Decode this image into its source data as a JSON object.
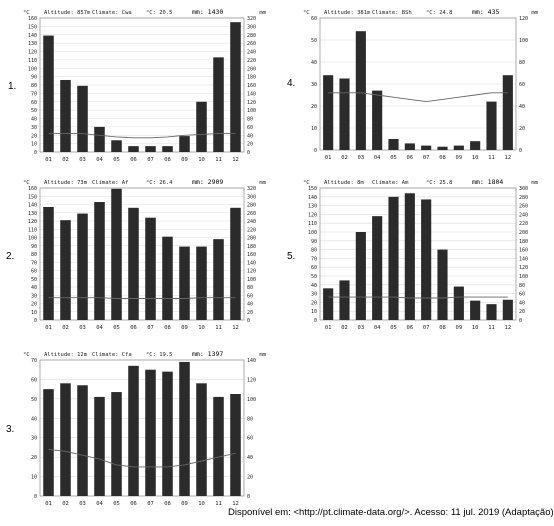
{
  "source_note": "Disponível em: <http://pt.climate-data.org/>. Acesso: 11 jul. 2019 (Adaptação).",
  "chart_data": [
    {
      "type": "bar",
      "number_label": "1.",
      "header": {
        "altitude": "Altitude: 857m",
        "climate": "Climate: Cwa",
        "temp": "°C: 20.5",
        "precip": "mm: 1430"
      },
      "left_unit": "°C",
      "right_unit": "mm",
      "left_ticks": [
        "160",
        "150",
        "140",
        "130",
        "120",
        "110",
        "100",
        "90",
        "80",
        "70",
        "60",
        "50",
        "40",
        "30",
        "20",
        "10",
        "0"
      ],
      "right_ticks": [
        "320",
        "300",
        "280",
        "260",
        "240",
        "220",
        "200",
        "180",
        "160",
        "140",
        "120",
        "100",
        "80",
        "60",
        "40",
        "20",
        "0"
      ],
      "right_max": 320,
      "categories": [
        "01",
        "02",
        "03",
        "04",
        "05",
        "06",
        "07",
        "08",
        "09",
        "10",
        "11",
        "12"
      ],
      "series": [
        {
          "name": "mm",
          "values": [
            278,
            172,
            158,
            60,
            28,
            14,
            14,
            14,
            38,
            120,
            226,
            310
          ]
        },
        {
          "name": "°C",
          "values": [
            22,
            22,
            22,
            20,
            18,
            17,
            17,
            18,
            20,
            21,
            22,
            22
          ]
        }
      ]
    },
    {
      "type": "bar",
      "number_label": "2.",
      "header": {
        "altitude": "Altitude: 73m",
        "climate": "Climate: Af",
        "temp": "°C: 26.4",
        "precip": "mm: 2909"
      },
      "left_unit": "°C",
      "right_unit": "mm",
      "left_ticks": [
        "160",
        "150",
        "140",
        "130",
        "120",
        "110",
        "100",
        "90",
        "80",
        "70",
        "60",
        "50",
        "40",
        "30",
        "20",
        "10",
        "0"
      ],
      "right_ticks": [
        "320",
        "300",
        "280",
        "260",
        "240",
        "220",
        "200",
        "180",
        "160",
        "140",
        "120",
        "100",
        "80",
        "60",
        "40",
        "20",
        "0"
      ],
      "right_max": 320,
      "categories": [
        "01",
        "02",
        "03",
        "04",
        "05",
        "06",
        "07",
        "08",
        "09",
        "10",
        "11",
        "12"
      ],
      "series": [
        {
          "name": "mm",
          "values": [
            274,
            242,
            258,
            286,
            318,
            272,
            248,
            202,
            178,
            178,
            196,
            272
          ]
        },
        {
          "name": "°C",
          "values": [
            27,
            27,
            27,
            27,
            26,
            26,
            26,
            26,
            26,
            27,
            27,
            27
          ]
        }
      ]
    },
    {
      "type": "bar",
      "number_label": "3.",
      "header": {
        "altitude": "Altitude: 12m",
        "climate": "Climate: Cfa",
        "temp": "°C: 19.5",
        "precip": "mm: 1397"
      },
      "left_unit": "°C",
      "right_unit": "mm",
      "left_ticks": [
        "70",
        "60",
        "50",
        "40",
        "30",
        "20",
        "10",
        "0"
      ],
      "right_ticks": [
        "140",
        "120",
        "100",
        "80",
        "60",
        "40",
        "20",
        "0"
      ],
      "right_max": 140,
      "categories": [
        "01",
        "02",
        "03",
        "04",
        "05",
        "06",
        "07",
        "08",
        "09",
        "10",
        "11",
        "12"
      ],
      "series": [
        {
          "name": "mm",
          "values": [
            110,
            116,
            114,
            102,
            107,
            134,
            130,
            128,
            138,
            116,
            102,
            105
          ]
        },
        {
          "name": "°C",
          "values": [
            24,
            23,
            21,
            19,
            16,
            15,
            15,
            15,
            16,
            18,
            20,
            22
          ]
        }
      ]
    },
    {
      "type": "bar",
      "number_label": "4.",
      "header": {
        "altitude": "Altitude: 381m",
        "climate": "Climate: BSh",
        "temp": "°C: 24.8",
        "precip": "mm: 435"
      },
      "left_unit": "°C",
      "right_unit": "mm",
      "left_ticks": [
        "60",
        "50",
        "40",
        "30",
        "20",
        "10",
        "0"
      ],
      "right_ticks": [
        "120",
        "100",
        "80",
        "60",
        "40",
        "20",
        "0"
      ],
      "right_max": 120,
      "categories": [
        "01",
        "02",
        "03",
        "04",
        "05",
        "06",
        "07",
        "08",
        "09",
        "10",
        "11",
        "12"
      ],
      "series": [
        {
          "name": "mm",
          "values": [
            68,
            65,
            108,
            54,
            10,
            6,
            4,
            3,
            4,
            8,
            44,
            68
          ]
        },
        {
          "name": "°C",
          "values": [
            26,
            26,
            26,
            25,
            24,
            23,
            22,
            23,
            24,
            25,
            26,
            26
          ]
        }
      ]
    },
    {
      "type": "bar",
      "number_label": "5.",
      "header": {
        "altitude": "Altitude: 8m",
        "climate": "Climate: Am",
        "temp": "°C: 25.8",
        "precip": "mm: 1804"
      },
      "left_unit": "°C",
      "right_unit": "mm",
      "left_ticks": [
        "150",
        "140",
        "130",
        "120",
        "110",
        "100",
        "90",
        "80",
        "70",
        "60",
        "50",
        "40",
        "30",
        "20",
        "10",
        "0"
      ],
      "right_ticks": [
        "300",
        "280",
        "260",
        "240",
        "220",
        "200",
        "180",
        "160",
        "140",
        "120",
        "100",
        "80",
        "60",
        "40",
        "20",
        "0"
      ],
      "right_max": 300,
      "categories": [
        "01",
        "02",
        "03",
        "04",
        "05",
        "06",
        "07",
        "08",
        "09",
        "10",
        "11",
        "12"
      ],
      "series": [
        {
          "name": "mm",
          "values": [
            72,
            90,
            200,
            236,
            280,
            288,
            274,
            160,
            76,
            44,
            36,
            46
          ]
        },
        {
          "name": "°C",
          "values": [
            26,
            26,
            26,
            26,
            26,
            25,
            25,
            25,
            26,
            26,
            26,
            26
          ]
        }
      ]
    }
  ]
}
